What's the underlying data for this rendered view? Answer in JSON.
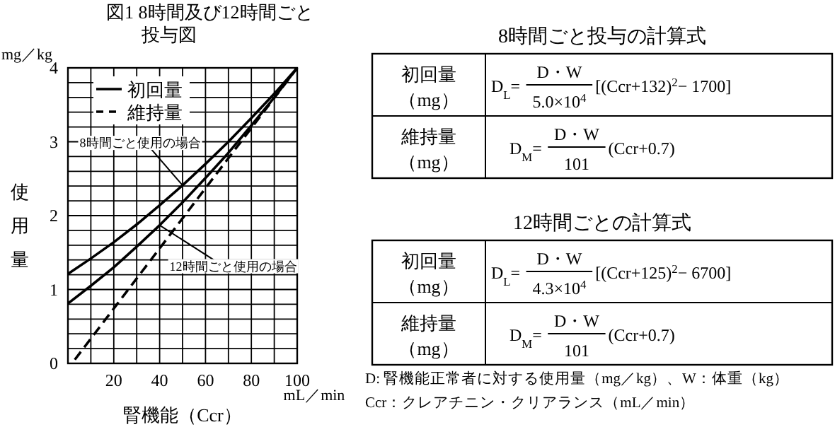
{
  "chart_data": [
    {
      "type": "line",
      "title": "図1 8時間及び12時間ごと投与図",
      "xlabel": "腎機能（Ccr）",
      "ylabel": "使用量",
      "xlim": [
        0,
        100
      ],
      "ylim": [
        0,
        4
      ],
      "xticks": [
        {
          "value": 0,
          "label": null
        },
        {
          "value": 10,
          "label": null
        },
        20,
        {
          "value": 30,
          "label": null
        },
        40,
        {
          "value": 50,
          "label": null
        },
        60,
        {
          "value": 70,
          "label": null
        },
        80,
        {
          "value": 90,
          "label": null
        },
        100
      ],
      "yticks": [
        0,
        {
          "value": 0.2,
          "label": null
        },
        {
          "value": 0.4,
          "label": null
        },
        {
          "value": 0.6,
          "label": null
        },
        {
          "value": 0.8,
          "label": null
        },
        1,
        {
          "value": 1.2,
          "label": null
        },
        {
          "value": 1.4,
          "label": null
        },
        {
          "value": 1.6,
          "label": null
        },
        {
          "value": 1.8,
          "label": null
        },
        2,
        {
          "value": 2.2,
          "label": null
        },
        {
          "value": 2.4,
          "label": null
        },
        {
          "value": 2.6,
          "label": null
        },
        {
          "value": 2.8,
          "label": null
        },
        3,
        {
          "value": 3.2,
          "label": null
        },
        {
          "value": 3.4,
          "label": null
        },
        {
          "value": 3.6,
          "label": null
        },
        {
          "value": 3.8,
          "label": null
        },
        4
      ],
      "grid": true,
      "legend": "top left",
      "x": [
        0,
        10,
        20,
        30,
        40,
        50,
        60,
        70,
        80,
        90,
        100
      ],
      "series": [
        {
          "name": "初回量",
          "color": "#000000",
          "line_style": "solid",
          "values": [
            1.21,
            1.42,
            1.64,
            1.88,
            2.14,
            2.41,
            2.7,
            3.0,
            3.32,
            3.65,
            4.0
          ]
        },
        {
          "color": "#000000",
          "line_style": "solid",
          "values": [
            0.81,
            1.05,
            1.3,
            1.58,
            1.87,
            2.18,
            2.51,
            2.85,
            3.22,
            3.6,
            4.0
          ]
        },
        {
          "name": "維持量",
          "color": "#000000",
          "line_style": "dashed",
          "x": [
            3,
            100
          ],
          "values": [
            0.05,
            4.0
          ]
        }
      ],
      "annotations": [
        {
          "text": "8時間ごと使用の場合",
          "x": 50,
          "y": 2.41
        },
        {
          "text": "12時間ごと使用の場合",
          "x": 40,
          "y": 1.87
        },
        "mg／kg",
        "mL／min"
      ]
    },
    {
      "type": "other",
      "title": "8時間ごと投与の計算式",
      "annotations": [
        "初回量",
        "（mg）",
        "D$_{L}$=",
        "D・W",
        "5.0×10$^{4}$",
        "[(Ccr+132)$^{2}$− 1700]",
        "維持量",
        "（mg）",
        "D$_{M}$=",
        "D・W",
        "101",
        "(Ccr+0.7)"
      ]
    },
    {
      "type": "other",
      "title": "12時間ごとの計算式",
      "annotations": [
        "初回量",
        "（mg）",
        "D$_{L}$=",
        "D・W",
        "4.3×10$^{4}$",
        "[(Ccr+125)$^{2}$− 6700]",
        "維持量",
        "（mg）",
        "D$_{M}$=",
        "D・W",
        "101",
        "(Ccr+0.7)",
        "D: 腎機能正常者に対する使用量（mg／kg）、W：体重（kg）",
        "Ccr：クレアチニン・クリアランス（mL／min）"
      ]
    }
  ]
}
